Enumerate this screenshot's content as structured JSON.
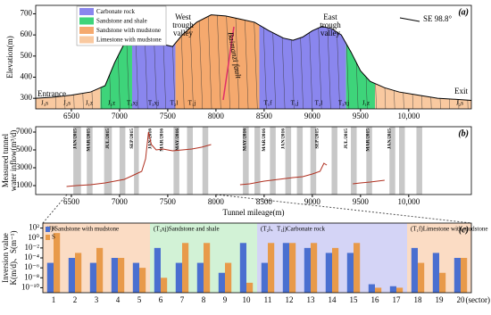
{
  "chart_data": [
    {
      "type": "area",
      "label": "(a)",
      "ylabel": "Elevation(m)",
      "xlim": [
        6130,
        10650
      ],
      "ylim": [
        250,
        740
      ],
      "xticks": [
        6500,
        7000,
        7500,
        8000,
        8500,
        9000,
        9500,
        {
          "value": 10000,
          "label": "10,000"
        }
      ],
      "yticks": [
        300,
        400,
        500,
        600,
        700
      ],
      "x": [
        6130,
        6300,
        6500,
        6700,
        6850,
        6950,
        7050,
        7150,
        7250,
        7350,
        7450,
        7550,
        7650,
        7800,
        7950,
        8100,
        8250,
        8400,
        8550,
        8700,
        8800,
        8900,
        9000,
        9100,
        9200,
        9300,
        9400,
        9500,
        9600,
        9750,
        9900,
        10100,
        10300,
        10500,
        10650
      ],
      "values": [
        300,
        305,
        315,
        330,
        360,
        470,
        560,
        600,
        610,
        590,
        555,
        545,
        600,
        660,
        695,
        690,
        675,
        660,
        620,
        585,
        575,
        590,
        620,
        640,
        630,
        600,
        520,
        430,
        380,
        350,
        330,
        315,
        300,
        295,
        290
      ],
      "series": [
        {
          "name": "Carbonate rock",
          "color": "#8a86ee",
          "ranges": [
            [
              7130,
              7580
            ],
            [
              8450,
              9350
            ]
          ]
        },
        {
          "name": "Sandstone and shale",
          "color": "#3ed47a",
          "ranges": [
            [
              6800,
              7130
            ],
            [
              9350,
              9650
            ]
          ]
        },
        {
          "name": "Sandstone with mudstone",
          "color": "#f5a96e",
          "ranges": [
            [
              7580,
              8450
            ]
          ]
        },
        {
          "name": "Limestone with mudstone",
          "color": "#f9c9a0",
          "ranges": [
            [
              6130,
              6800
            ],
            [
              9650,
              10650
            ]
          ]
        }
      ],
      "valleys": [
        [
          "West",
          "trough",
          "valley"
        ],
        [
          "East",
          "trough",
          "valley"
        ]
      ],
      "fault": "Baimanzi fault",
      "direction": "SE 98.8°",
      "entrance": "Entrance",
      "exit": "Exit",
      "strata": [
        "J₃s",
        "J₂s",
        "J₁z",
        "J₁z",
        "T₃xj",
        "T₃xj",
        "T₂l",
        "T₁j",
        "T₁f",
        "T₁j",
        "T₂l",
        "T₃xj",
        "J₁z",
        "J₂s"
      ]
    },
    {
      "type": "line",
      "label": "(b)",
      "ylabel": [
        "Measured tunnel",
        "water inflow(m³/d)"
      ],
      "xlabel": "Tunnel mileage(m)",
      "xlim": [
        6130,
        10650
      ],
      "ylim": [
        0,
        7600
      ],
      "xticks": [
        6500,
        7000,
        7500,
        8000,
        8500,
        9000,
        9500,
        {
          "value": 10000,
          "label": "10,000"
        }
      ],
      "yticks": [
        1000,
        3000,
        5000,
        7000
      ],
      "x": [
        6450,
        6550,
        6700,
        6850,
        6950,
        7050,
        7150,
        7230,
        7270,
        7300,
        7330,
        7380,
        7450,
        7550,
        7650,
        7750,
        7850,
        7950,
        8100,
        8250,
        8350,
        8500,
        8650,
        8800,
        8900,
        9000,
        9080,
        9120,
        9150,
        9300,
        9420,
        9500,
        9600,
        9750
      ],
      "series": [
        {
          "color": "#b03020",
          "values": [
            900,
            1000,
            1100,
            1300,
            1500,
            1700,
            2200,
            2600,
            4000,
            7000,
            5600,
            5000,
            5100,
            4900,
            5000,
            5100,
            5300,
            5600,
            null,
            1100,
            1200,
            1500,
            1700,
            1900,
            2000,
            2300,
            2600,
            3500,
            3300,
            null,
            1200,
            1300,
            1400,
            1600
          ]
        }
      ],
      "shade": "#c8c8c8",
      "ranges": [
        [
          6520,
          6600
        ],
        [
          6660,
          6720
        ],
        [
          6840,
          6920
        ],
        [
          7000,
          7060
        ],
        [
          7150,
          7200
        ],
        [
          7560,
          7620
        ],
        [
          7700,
          7760
        ],
        [
          7860,
          7920
        ],
        [
          8280,
          8340
        ],
        [
          8400,
          8460
        ],
        [
          8560,
          8620
        ],
        [
          8720,
          8780
        ],
        [
          8840,
          8900
        ],
        [
          8980,
          9040
        ],
        [
          9200,
          9260
        ],
        [
          9400,
          9460
        ],
        [
          9560,
          9620
        ],
        [
          9800,
          9860
        ],
        [
          9900,
          9960
        ],
        [
          10080,
          10140
        ]
      ],
      "markers": [
        {
          "x": 6540,
          "label": "JAN/2015"
        },
        {
          "x": 6680,
          "label": "MAR/2015"
        },
        {
          "x": 6880,
          "label": "JUL/2015"
        },
        {
          "x": 7130,
          "label": "SEP/2015"
        },
        {
          "x": 7320,
          "label": "JAN/2016"
        },
        {
          "x": 7440,
          "label": "MAR/2016"
        },
        {
          "x": 7600,
          "label": "MAY/2016"
        },
        {
          "x": 8300,
          "label": "MAY/2016"
        },
        {
          "x": 8500,
          "label": "MAR/2016"
        },
        {
          "x": 8700,
          "label": "JAN/2016"
        },
        {
          "x": 9050,
          "label": "SEP/2015"
        },
        {
          "x": 9350,
          "label": "JUL/2015"
        },
        {
          "x": 9580,
          "label": "MAR/2015"
        },
        {
          "x": 9800,
          "label": "JAN/2015"
        }
      ]
    },
    {
      "type": "bar",
      "label": "(c)",
      "ylabel": [
        "Inversion value",
        "K(m/d)、S(m⁻¹)"
      ],
      "xlabel": "(sector)",
      "log": true,
      "ylim": [
        1e-11,
        1000
      ],
      "yticks": [
        {
          "value": 100,
          "label": "10²"
        },
        {
          "value": 1,
          "label": "10⁰"
        },
        {
          "value": 0.01,
          "label": "10⁻²"
        },
        {
          "value": 0.0001,
          "label": "10⁻⁴"
        },
        {
          "value": 1e-06,
          "label": "10⁻⁶"
        },
        {
          "value": 1e-08,
          "label": "10⁻⁸"
        },
        {
          "value": 1e-10,
          "label": "10⁻¹⁰"
        }
      ],
      "categories": [
        "1",
        "2",
        "3",
        "4",
        "5",
        "6",
        "7",
        "8",
        "9",
        "10",
        "11",
        "12",
        "13",
        "14",
        "15",
        "16",
        "17",
        "18",
        "19",
        "20"
      ],
      "series": [
        {
          "name": "K",
          "color": "#4a6fd0",
          "values": [
            1e-05,
            0.0001,
            1e-05,
            0.0001,
            1e-05,
            0.01,
            1e-05,
            1e-05,
            1e-07,
            0.1,
            1e-05,
            0.1,
            0.01,
            0.001,
            0.001,
            5e-10,
            2e-10,
            0.01,
            0.001,
            0.0001
          ]
        },
        {
          "name": "S",
          "color": "#e89a4a",
          "values": [
            10,
            0.001,
            0.01,
            0.0001,
            1e-06,
            1e-08,
            0.1,
            0.1,
            1e-05,
            1e-09,
            0.1,
            0.1,
            0.1,
            0.01,
            0.1,
            1e-10,
            1e-10,
            1e-05,
            1e-07,
            0.0001
          ]
        }
      ],
      "groups": [
        {
          "label": "(J) Sandstone with mudstone",
          "color": "#fbdcc4",
          "first": "1",
          "last": "5"
        },
        {
          "label": "(T₃xj)Sandstone and shale",
          "color": "#d2f2d6",
          "first": "6",
          "last": "10"
        },
        {
          "label": "(T₂l、T₁j)Carbonate rock",
          "color": "#d4d4f6",
          "first": "11",
          "last": "17"
        },
        {
          "label": "(T₁f)Limestone with mudstone",
          "color": "#fbdcc4",
          "first": "18",
          "last": "20"
        }
      ]
    }
  ]
}
